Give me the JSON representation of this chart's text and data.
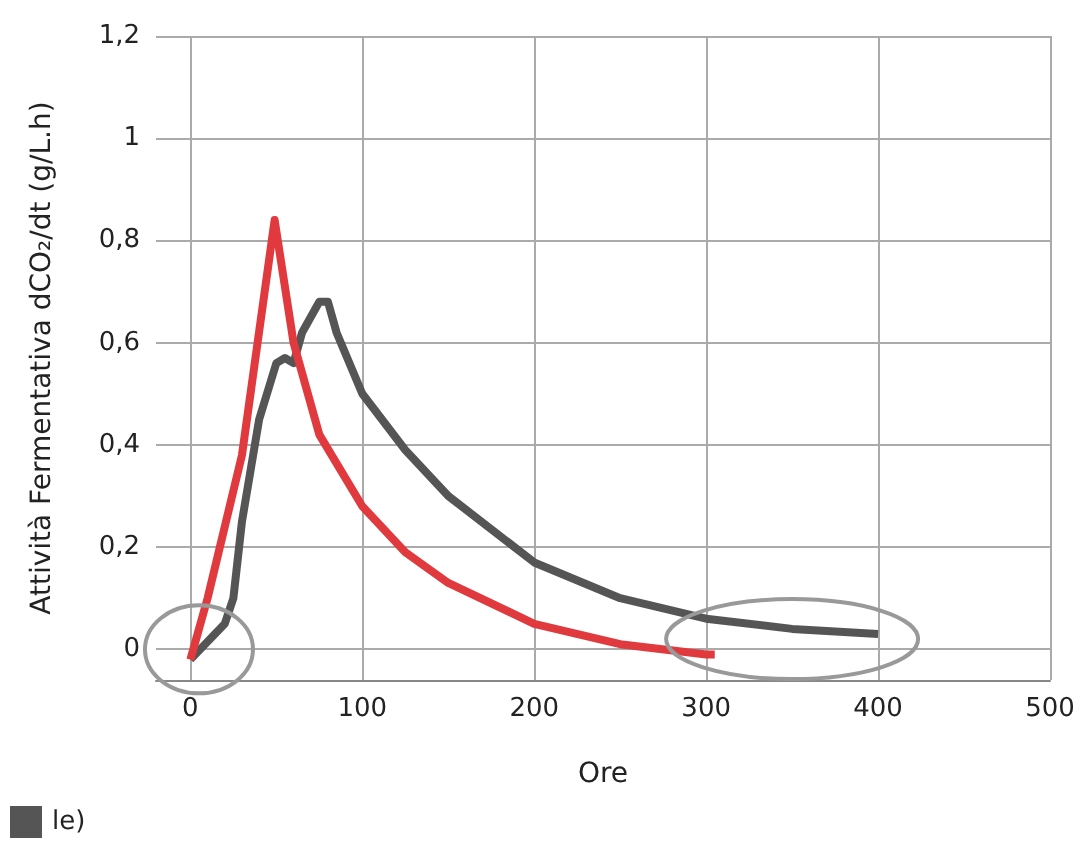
{
  "chart_data": {
    "type": "line",
    "xlabel": "Ore",
    "ylabel": "Attività Fermentativa dCO₂/dt (g/L.h)",
    "xlim": [
      -20,
      500
    ],
    "xticks": [
      0,
      100,
      200,
      300,
      400,
      500
    ],
    "ylim": [
      -0.06,
      1.2
    ],
    "yticks": [
      {
        "value": 0,
        "label": "0"
      },
      {
        "value": 0.2,
        "label": "0,2"
      },
      {
        "value": 0.4,
        "label": "0,4"
      },
      {
        "value": 0.6,
        "label": "0,6"
      },
      {
        "value": 0.8,
        "label": "0,8"
      },
      {
        "value": 1,
        "label": "1"
      },
      {
        "value": 1.2,
        "label": "1,2"
      }
    ],
    "grid": true,
    "legend": "bottom left",
    "marker": "none",
    "line_style": "solid",
    "series": [
      {
        "name": "le)",
        "color": "#555555",
        "x": [
          0,
          20,
          25,
          30,
          40,
          50,
          55,
          60,
          65,
          75,
          80,
          85,
          100,
          125,
          150,
          200,
          250,
          300,
          350,
          400
        ],
        "values": [
          -0.02,
          0.05,
          0.1,
          0.25,
          0.45,
          0.56,
          0.57,
          0.56,
          0.62,
          0.68,
          0.68,
          0.62,
          0.5,
          0.39,
          0.3,
          0.17,
          0.1,
          0.06,
          0.04,
          0.03
        ]
      },
      {
        "color": "#e03a3e",
        "x": [
          0,
          10,
          30,
          49,
          60,
          75,
          100,
          125,
          150,
          200,
          250,
          300,
          305
        ],
        "values": [
          -0.02,
          0.1,
          0.38,
          0.84,
          0.6,
          0.42,
          0.28,
          0.19,
          0.13,
          0.05,
          0.01,
          -0.01,
          -0.01
        ]
      }
    ]
  }
}
